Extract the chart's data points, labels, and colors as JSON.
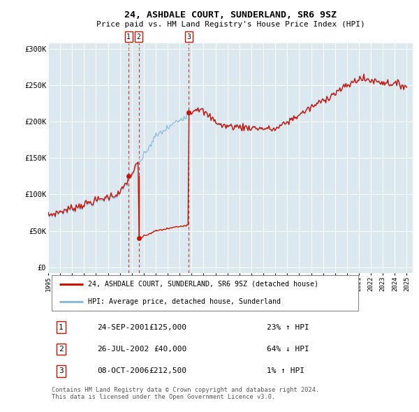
{
  "title": "24, ASHDALE COURT, SUNDERLAND, SR6 9SZ",
  "subtitle": "Price paid vs. HM Land Registry's House Price Index (HPI)",
  "background_color": "#ffffff",
  "plot_bg_color": "#dce8f0",
  "yticks": [
    0,
    50000,
    100000,
    150000,
    200000,
    250000,
    300000
  ],
  "ytick_labels": [
    "£0",
    "£50K",
    "£100K",
    "£150K",
    "£200K",
    "£250K",
    "£300K"
  ],
  "xstart_year": 1995,
  "xend_year": 2025,
  "hpi_color": "#88bbdd",
  "price_color": "#cc1100",
  "transactions": [
    {
      "date_str": "24-SEP-2001",
      "date_num": 2001.73,
      "price": 125000,
      "label": "1",
      "pct": "23%",
      "dir": "↑"
    },
    {
      "date_str": "26-JUL-2002",
      "date_num": 2002.57,
      "price": 40000,
      "label": "2",
      "pct": "64%",
      "dir": "↓"
    },
    {
      "date_str": "08-OCT-2006",
      "date_num": 2006.77,
      "price": 212500,
      "label": "3",
      "pct": "1%",
      "dir": "↑"
    }
  ],
  "legend_entries": [
    "24, ASHDALE COURT, SUNDERLAND, SR6 9SZ (detached house)",
    "HPI: Average price, detached house, Sunderland"
  ],
  "table_rows": [
    [
      "1",
      "24-SEP-2001",
      "£125,000",
      "23% ↑ HPI"
    ],
    [
      "2",
      "26-JUL-2002",
      "£40,000",
      "64% ↓ HPI"
    ],
    [
      "3",
      "08-OCT-2006",
      "£212,500",
      "1% ↑ HPI"
    ]
  ],
  "footer_text": "Contains HM Land Registry data © Crown copyright and database right 2024.\nThis data is licensed under the Open Government Licence v3.0.",
  "grid_color": "#ffffff",
  "dashed_color": "#cc1100"
}
